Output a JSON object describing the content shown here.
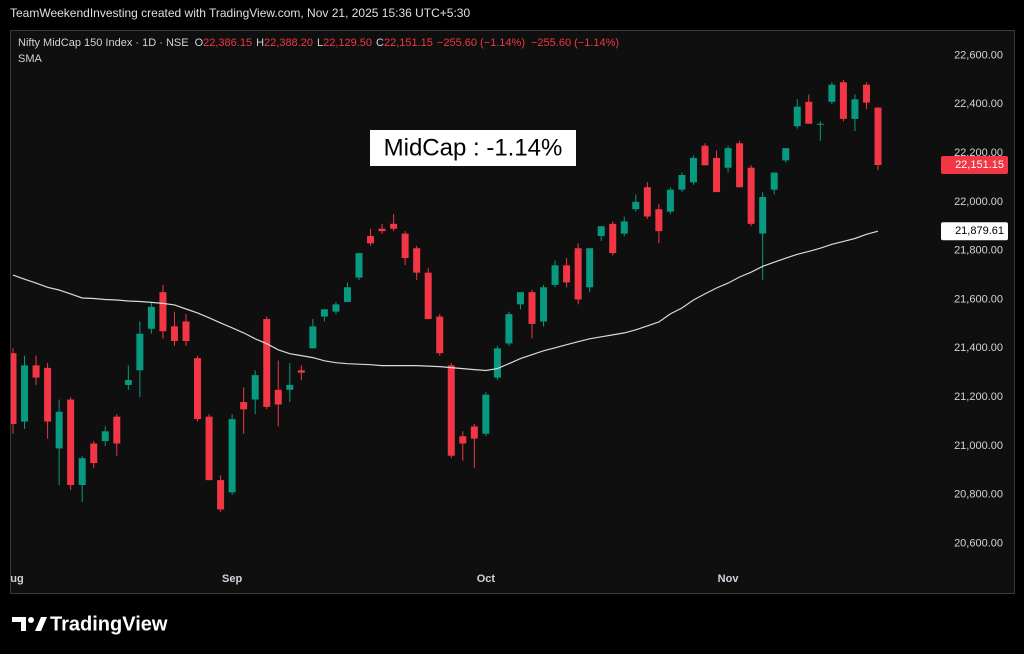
{
  "header": "TeamWeekendInvesting created with TradingView.com, Nov 21, 2025 15:36 UTC+5:30",
  "chart_data": {
    "type": "candlestick",
    "symbol": "Nifty MidCap 150 Index · 1D · NSE",
    "ohlc": [
      {
        "label": "O",
        "value": "22,386.15"
      },
      {
        "label": "H",
        "value": "22,388.20"
      },
      {
        "label": "L",
        "value": "22,129.50"
      },
      {
        "label": "C",
        "value": "22,151.15"
      }
    ],
    "change": [
      "−255.60 (−1.14%)",
      "−255.60 (−1.14%)"
    ],
    "annotation": "MidCap : -1.14%",
    "up_color": "#089981",
    "down_color": "#f23645",
    "categories": [
      "Aug",
      null,
      null,
      null,
      null,
      null,
      null,
      null,
      null,
      null,
      null,
      null,
      null,
      null,
      null,
      null,
      null,
      null,
      null,
      "Sep",
      null,
      null,
      null,
      null,
      null,
      null,
      null,
      null,
      null,
      null,
      null,
      null,
      null,
      null,
      null,
      null,
      null,
      null,
      null,
      null,
      null,
      "Oct",
      null,
      null,
      null,
      null,
      null,
      null,
      null,
      null,
      null,
      null,
      null,
      null,
      null,
      null,
      null,
      null,
      null,
      null,
      null,
      null,
      "Nov",
      null,
      null,
      null,
      null,
      null,
      null,
      null,
      null,
      null,
      null,
      null,
      null,
      null
    ],
    "open": [
      21380,
      21100,
      21330,
      21320,
      20990,
      21190,
      20840,
      21010,
      21020,
      21120,
      21250,
      21310,
      21480,
      21630,
      21490,
      21510,
      21360,
      21120,
      20860,
      20810,
      21180,
      21190,
      21520,
      21230,
      21230,
      21310,
      21400,
      21530,
      21550,
      21590,
      21690,
      21860,
      21890,
      21910,
      21870,
      21810,
      21710,
      21530,
      21330,
      21040,
      21080,
      21050,
      21280,
      21420,
      21580,
      21630,
      21510,
      21660,
      21740,
      21810,
      21650,
      21860,
      21910,
      21870,
      21970,
      22060,
      21970,
      21960,
      22050,
      22080,
      22230,
      22180,
      22140,
      22240,
      22140,
      21870,
      22050,
      22170,
      22310,
      22410,
      22320,
      22410,
      22490,
      22340,
      22480,
      22386.15
    ],
    "high": [
      21400,
      21370,
      21370,
      21340,
      21190,
      21200,
      20960,
      21020,
      21080,
      21130,
      21330,
      21510,
      21590,
      21660,
      21550,
      21540,
      21370,
      21130,
      20880,
      21130,
      21240,
      21310,
      21530,
      21350,
      21340,
      21330,
      21520,
      21560,
      21590,
      21670,
      21790,
      21890,
      21910,
      21950,
      21880,
      21820,
      21730,
      21540,
      21340,
      21060,
      21090,
      21220,
      21410,
      21550,
      21630,
      21640,
      21660,
      21760,
      21770,
      21830,
      21810,
      21900,
      21920,
      21940,
      22030,
      22080,
      21990,
      22060,
      22120,
      22190,
      22240,
      22210,
      22230,
      22250,
      22150,
      22040,
      22120,
      22220,
      22420,
      22440,
      22330,
      22490,
      22500,
      22440,
      22490,
      22388.2
    ],
    "low": [
      21050,
      21070,
      21250,
      21030,
      20840,
      20820,
      20770,
      20910,
      21000,
      20960,
      21230,
      21200,
      21460,
      21440,
      21410,
      21410,
      21100,
      20860,
      20730,
      20800,
      21050,
      21130,
      21150,
      21080,
      21180,
      21270,
      21400,
      21510,
      21540,
      21590,
      21680,
      21820,
      21870,
      21880,
      21740,
      21680,
      21520,
      21370,
      20950,
      20940,
      20910,
      21040,
      21270,
      21410,
      21560,
      21440,
      21490,
      21650,
      21650,
      21580,
      21630,
      21840,
      21780,
      21860,
      21960,
      21930,
      21830,
      21950,
      22040,
      22070,
      22150,
      22040,
      22120,
      22060,
      21900,
      21680,
      22030,
      22160,
      22300,
      22320,
      22250,
      22400,
      22330,
      22290,
      22380,
      22129.5
    ],
    "close": [
      21090,
      21330,
      21280,
      21100,
      21140,
      20840,
      20950,
      20930,
      21060,
      21010,
      21270,
      21460,
      21570,
      21470,
      21430,
      21430,
      21110,
      20860,
      20740,
      21110,
      21150,
      21290,
      21160,
      21170,
      21250,
      21300,
      21490,
      21560,
      21580,
      21650,
      21790,
      21830,
      21880,
      21890,
      21770,
      21710,
      21520,
      21380,
      20960,
      21010,
      21030,
      21210,
      21400,
      21540,
      21630,
      21500,
      21650,
      21740,
      21670,
      21600,
      21810,
      21900,
      21790,
      21920,
      22000,
      21940,
      21880,
      22050,
      22110,
      22180,
      22150,
      22040,
      22220,
      22060,
      21910,
      22020,
      22120,
      22220,
      22390,
      22320,
      22320,
      22480,
      22340,
      22420,
      22406.75,
      22151.15
    ],
    "sma": {
      "name": "SMA",
      "color": "#d9d9d9",
      "values": [
        21700,
        21683,
        21667,
        21650,
        21639,
        21623,
        21606,
        21604,
        21600,
        21598,
        21594,
        21592,
        21588,
        21584,
        21578,
        21561,
        21545,
        21525,
        21504,
        21484,
        21463,
        21439,
        21419,
        21394,
        21378,
        21370,
        21362,
        21349,
        21341,
        21337,
        21335,
        21333,
        21329,
        21329,
        21329,
        21329,
        21327,
        21325,
        21321,
        21317,
        21313,
        21309,
        21317,
        21337,
        21358,
        21374,
        21390,
        21402,
        21415,
        21427,
        21439,
        21447,
        21455,
        21463,
        21476,
        21492,
        21508,
        21541,
        21565,
        21598,
        21623,
        21647,
        21667,
        21692,
        21712,
        21736,
        21753,
        21769,
        21785,
        21797,
        21810,
        21826,
        21838,
        21850,
        21867,
        21879.61
      ]
    },
    "last_price": {
      "value": 22151.15,
      "label": "22,151.15"
    },
    "sma_last": {
      "value": 21879.61,
      "label": "21,879.61"
    },
    "ylim": [
      20500,
      22700
    ],
    "yticks": [
      {
        "value": 20600,
        "label": "20,600.00"
      },
      {
        "value": 20800,
        "label": "20,800.00"
      },
      {
        "value": 21000,
        "label": "21,000.00"
      },
      {
        "value": 21200,
        "label": "21,200.00"
      },
      {
        "value": 21400,
        "label": "21,400.00"
      },
      {
        "value": 21600,
        "label": "21,600.00"
      },
      {
        "value": 21800,
        "label": "21,800.00"
      },
      {
        "value": 22000,
        "label": "22,000.00"
      },
      {
        "value": 22200,
        "label": "22,200.00"
      },
      {
        "value": 22400,
        "label": "22,400.00"
      },
      {
        "value": 22600,
        "label": "22,600.00"
      }
    ],
    "grid": false
  },
  "logo": "TradingView"
}
